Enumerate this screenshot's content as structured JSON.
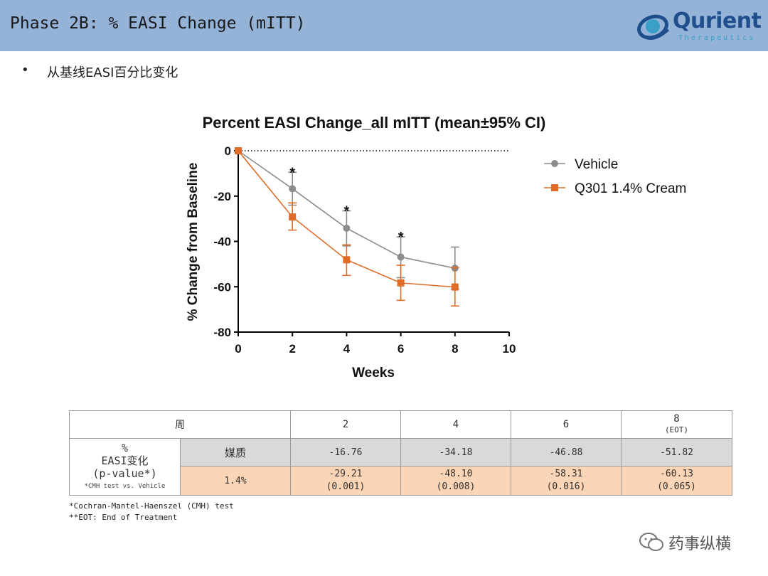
{
  "header": {
    "title": "Phase 2B: % EASI Change (mITT)"
  },
  "logo": {
    "name": "Qurient",
    "subtitle": "Therapeutics"
  },
  "bullet": {
    "marker": "•",
    "text": "从基线EASI百分比变化"
  },
  "chart_data": {
    "type": "line",
    "title": "Percent EASI Change_all mITT (mean±95% CI)",
    "xlabel": "Weeks",
    "ylabel": "% Change from Baseline",
    "xlim": [
      0,
      10
    ],
    "ylim": [
      -80,
      0
    ],
    "xticks": [
      0,
      2,
      4,
      6,
      8,
      10
    ],
    "yticks": [
      0,
      -20,
      -40,
      -60,
      -80
    ],
    "legend_position": "right",
    "reference_line": 0,
    "series": [
      {
        "name": "Vehicle",
        "color": "#8c8c8c",
        "marker": "circle",
        "x": [
          0,
          2,
          4,
          6,
          8
        ],
        "y": [
          0,
          -16.76,
          -34.18,
          -46.88,
          -51.82
        ],
        "ci_low": [
          0,
          -24,
          -42,
          -56,
          -61
        ],
        "ci_high": [
          0,
          -9.5,
          -26.5,
          -38,
          -42.5
        ]
      },
      {
        "name": "Q301 1.4% Cream",
        "color": "#e06c27",
        "marker": "square",
        "x": [
          0,
          2,
          4,
          6,
          8
        ],
        "y": [
          0,
          -29.21,
          -48.1,
          -58.31,
          -60.13
        ],
        "ci_low": [
          0,
          -35,
          -55,
          -66,
          -68.5
        ],
        "ci_high": [
          0,
          -23,
          -41.5,
          -50.5,
          -51.5
        ]
      }
    ],
    "annotations": [
      {
        "x": 2,
        "y": -9.5,
        "text": "*"
      },
      {
        "x": 4,
        "y": -26.5,
        "text": "*"
      },
      {
        "x": 6,
        "y": -38,
        "text": "*"
      }
    ]
  },
  "table": {
    "header": {
      "label": "周",
      "cols": [
        "2",
        "4",
        "6",
        "8"
      ],
      "col4_sub": "(EOT)"
    },
    "row_label": {
      "line1": "%",
      "line2": "EASI变化",
      "line3": "(p-value*)",
      "note": "*CMH test vs. Vehicle"
    },
    "vehicle": {
      "label": "媒质",
      "values": [
        "-16.76",
        "-34.18",
        "-46.88",
        "-51.82"
      ]
    },
    "cream": {
      "label": "1.4%",
      "values": [
        "-29.21",
        "-48.10",
        "-58.31",
        "-60.13"
      ],
      "pvalues": [
        "(0.001)",
        "(0.008)",
        "(0.016)",
        "(0.065)"
      ]
    }
  },
  "footnotes": [
    "*Cochran-Mantel-Haenszel (CMH) test",
    "**EOT: End of Treatment"
  ],
  "watermark": {
    "text": "药事纵横"
  }
}
